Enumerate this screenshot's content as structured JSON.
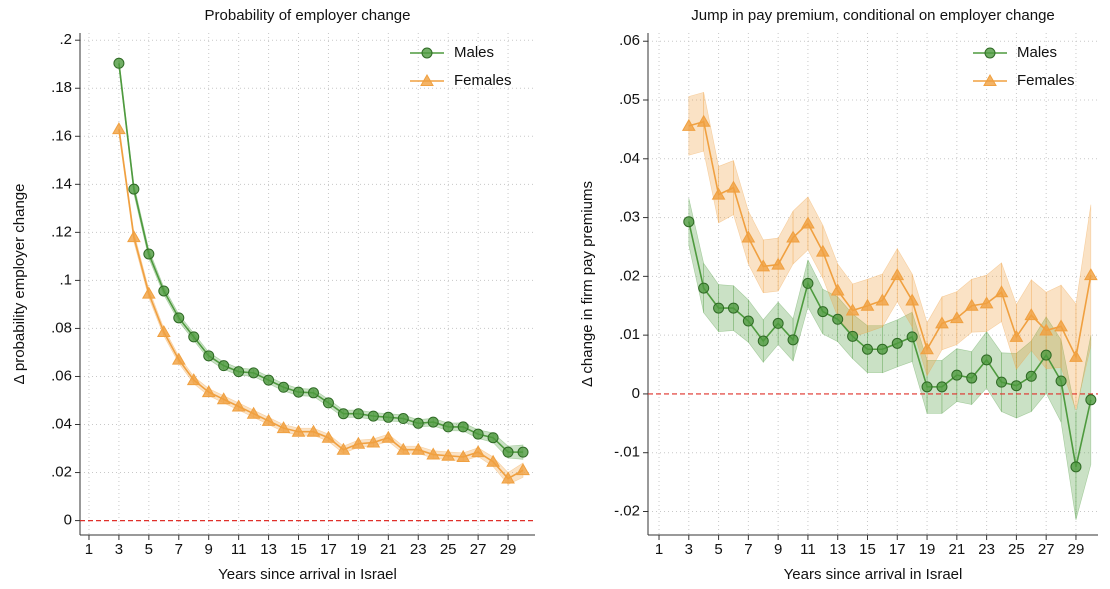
{
  "chart_data": [
    {
      "type": "line",
      "title": "Probability of employer change",
      "xlabel": "Years since arrival in Israel",
      "ylabel": "Δ probability employer change",
      "x": [
        3,
        4,
        5,
        6,
        7,
        8,
        9,
        10,
        11,
        12,
        13,
        14,
        15,
        16,
        17,
        18,
        19,
        20,
        21,
        22,
        23,
        24,
        25,
        26,
        27,
        28,
        29,
        30
      ],
      "series": [
        {
          "name": "Males",
          "color": "#4e9a3e",
          "marker": "circle",
          "values": [
            0.1904,
            0.138,
            0.111,
            0.0956,
            0.0844,
            0.0765,
            0.0686,
            0.0645,
            0.062,
            0.0615,
            0.0585,
            0.0555,
            0.0535,
            0.0532,
            0.049,
            0.0445,
            0.0445,
            0.0435,
            0.043,
            0.0425,
            0.0405,
            0.041,
            0.039,
            0.039,
            0.036,
            0.0345,
            0.0285,
            0.0285
          ],
          "ci": [
            0.002,
            0.002,
            0.0018,
            0.0016,
            0.0015,
            0.0015,
            0.0015,
            0.0015,
            0.0015,
            0.0015,
            0.0015,
            0.0015,
            0.0015,
            0.0015,
            0.0015,
            0.0015,
            0.0015,
            0.0015,
            0.0015,
            0.0015,
            0.0015,
            0.0016,
            0.0016,
            0.0017,
            0.0018,
            0.002,
            0.0025,
            0.003
          ]
        },
        {
          "name": "Females",
          "color": "#f0a040",
          "marker": "triangle",
          "values": [
            0.163,
            0.118,
            0.0945,
            0.0785,
            0.067,
            0.0585,
            0.0535,
            0.0505,
            0.0475,
            0.0445,
            0.0415,
            0.0385,
            0.037,
            0.037,
            0.0345,
            0.0295,
            0.032,
            0.0325,
            0.0345,
            0.0295,
            0.0295,
            0.0275,
            0.027,
            0.0265,
            0.0285,
            0.0245,
            0.0175,
            0.021
          ],
          "ci": [
            0.002,
            0.002,
            0.0018,
            0.0016,
            0.0015,
            0.0015,
            0.0015,
            0.0015,
            0.0015,
            0.0015,
            0.0015,
            0.0015,
            0.0015,
            0.0015,
            0.0015,
            0.0015,
            0.0015,
            0.0015,
            0.0015,
            0.0015,
            0.0015,
            0.0016,
            0.0016,
            0.0017,
            0.0018,
            0.002,
            0.0025,
            0.003
          ]
        }
      ],
      "xlim": [
        0.4,
        30.8
      ],
      "ylim": [
        -0.006,
        0.203
      ],
      "xticks": [
        1,
        3,
        5,
        7,
        9,
        11,
        13,
        15,
        17,
        19,
        21,
        23,
        25,
        27,
        29
      ],
      "yticks": [
        0,
        {
          "value": 0.02,
          "label": ".02"
        },
        {
          "value": 0.04,
          "label": ".04"
        },
        {
          "value": 0.06,
          "label": ".06"
        },
        {
          "value": 0.08,
          "label": ".08"
        },
        {
          "value": 0.1,
          "label": ".1"
        },
        {
          "value": 0.12,
          "label": ".12"
        },
        {
          "value": 0.14,
          "label": ".14"
        },
        {
          "value": 0.16,
          "label": ".16"
        },
        {
          "value": 0.18,
          "label": ".18"
        },
        {
          "value": 0.2,
          "label": ".2"
        }
      ],
      "grid": true,
      "hline": 0,
      "legend": "top-right"
    },
    {
      "type": "line",
      "title": "Jump in pay premium, conditional on employer change",
      "xlabel": "Years since arrival in Israel",
      "ylabel": "Δ change in firm pay premiums",
      "x": [
        3,
        4,
        5,
        6,
        7,
        8,
        9,
        10,
        11,
        12,
        13,
        14,
        15,
        16,
        17,
        18,
        19,
        20,
        21,
        22,
        23,
        24,
        25,
        26,
        27,
        28,
        29,
        30
      ],
      "series": [
        {
          "name": "Males",
          "color": "#4e9a3e",
          "marker": "circle",
          "values": [
            0.0293,
            0.018,
            0.0146,
            0.0146,
            0.0124,
            0.009,
            0.012,
            0.0092,
            0.0188,
            0.014,
            0.0127,
            0.0098,
            0.0076,
            0.0076,
            0.0086,
            0.0097,
            0.0012,
            0.0012,
            0.0032,
            0.0027,
            0.0058,
            0.002,
            0.0014,
            0.003,
            0.0066,
            0.0022,
            -0.0124,
            -0.001
          ],
          "ci": [
            0.004,
            0.0042,
            0.004,
            0.0038,
            0.0036,
            0.0036,
            0.0036,
            0.0036,
            0.004,
            0.0038,
            0.0038,
            0.0038,
            0.004,
            0.004,
            0.004,
            0.0042,
            0.0045,
            0.0045,
            0.0045,
            0.0045,
            0.0048,
            0.005,
            0.0055,
            0.006,
            0.0065,
            0.007,
            0.009,
            0.011
          ]
        },
        {
          "name": "Females",
          "color": "#f0a040",
          "marker": "triangle",
          "values": [
            0.0456,
            0.0463,
            0.0339,
            0.0351,
            0.0266,
            0.0217,
            0.022,
            0.0266,
            0.029,
            0.0242,
            0.0176,
            0.0142,
            0.015,
            0.0159,
            0.0202,
            0.0159,
            0.0076,
            0.012,
            0.0129,
            0.015,
            0.0154,
            0.0173,
            0.0097,
            0.0134,
            0.0108,
            0.0115,
            0.0063,
            0.0202
          ],
          "ci": [
            0.005,
            0.005,
            0.0048,
            0.0046,
            0.0045,
            0.0045,
            0.0045,
            0.0045,
            0.0045,
            0.0045,
            0.0045,
            0.0045,
            0.0045,
            0.0045,
            0.0045,
            0.0045,
            0.0045,
            0.0045,
            0.0045,
            0.0045,
            0.0048,
            0.005,
            0.0055,
            0.006,
            0.0065,
            0.007,
            0.009,
            0.012
          ]
        }
      ],
      "xlim": [
        0.26,
        30.48
      ],
      "ylim": [
        -0.024,
        0.0614
      ],
      "xticks": [
        1,
        3,
        5,
        7,
        9,
        11,
        13,
        15,
        17,
        19,
        21,
        23,
        25,
        27,
        29
      ],
      "yticks": [
        {
          "value": -0.02,
          "label": "-.02"
        },
        {
          "value": -0.01,
          "label": "-.01"
        },
        0,
        {
          "value": 0.01,
          "label": ".01"
        },
        {
          "value": 0.02,
          "label": ".02"
        },
        {
          "value": 0.03,
          "label": ".03"
        },
        {
          "value": 0.04,
          "label": ".04"
        },
        {
          "value": 0.05,
          "label": ".05"
        },
        {
          "value": 0.06,
          "label": ".06"
        }
      ],
      "grid": true,
      "hline": 0,
      "legend": "top-right"
    }
  ]
}
